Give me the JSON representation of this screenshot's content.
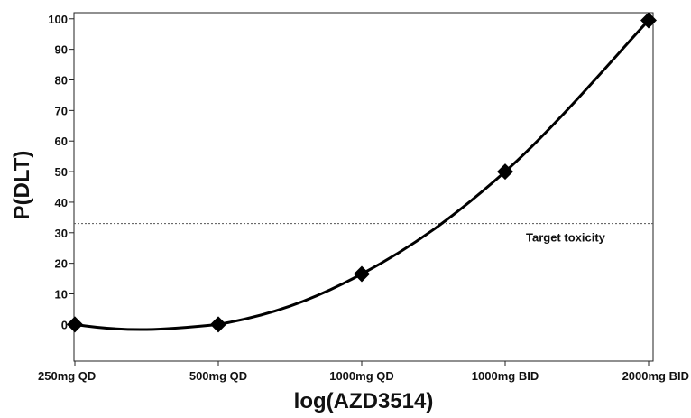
{
  "chart_data": {
    "type": "line",
    "title": "",
    "xlabel": "log(AZD3514)",
    "ylabel": "P(DLT)",
    "categories": [
      "250mg QD",
      "500mg QD",
      "1000mg QD",
      "1000mg BID",
      "2000mg BID"
    ],
    "series": [
      {
        "values": [
          0,
          0,
          16.5,
          50,
          99.5
        ]
      }
    ],
    "yticks": [
      0,
      10,
      20,
      30,
      40,
      50,
      60,
      70,
      80,
      90,
      100
    ],
    "ylim": [
      -12,
      102
    ],
    "reference_line": {
      "y": 33,
      "label": "Target toxicity",
      "style": "dashed"
    },
    "marker": "diamond",
    "grid": false,
    "colors": {
      "line": "#000000",
      "reference": "#555555"
    }
  }
}
